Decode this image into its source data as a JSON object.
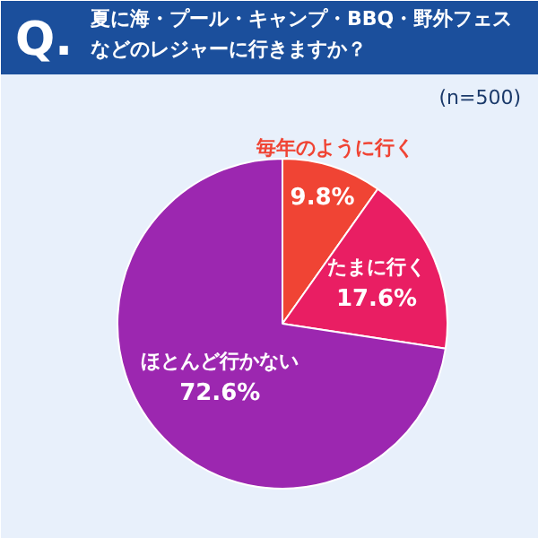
{
  "chart_data": {
    "type": "pie",
    "title": "夏に海・プール・キャンプ・BBQ・野外フェスなどのレジャーに行きますか？",
    "annotations": [
      "Q.",
      "(n=500)"
    ],
    "categories": [
      "毎年のように行く",
      "たまに行く",
      "ほとんど行かない"
    ],
    "values": [
      9.8,
      17.6,
      72.6
    ],
    "value_labels": [
      "9.8%",
      "17.6%",
      "72.6%"
    ],
    "colors": [
      "#f04434",
      "#e91e63",
      "#9c27b0"
    ]
  }
}
